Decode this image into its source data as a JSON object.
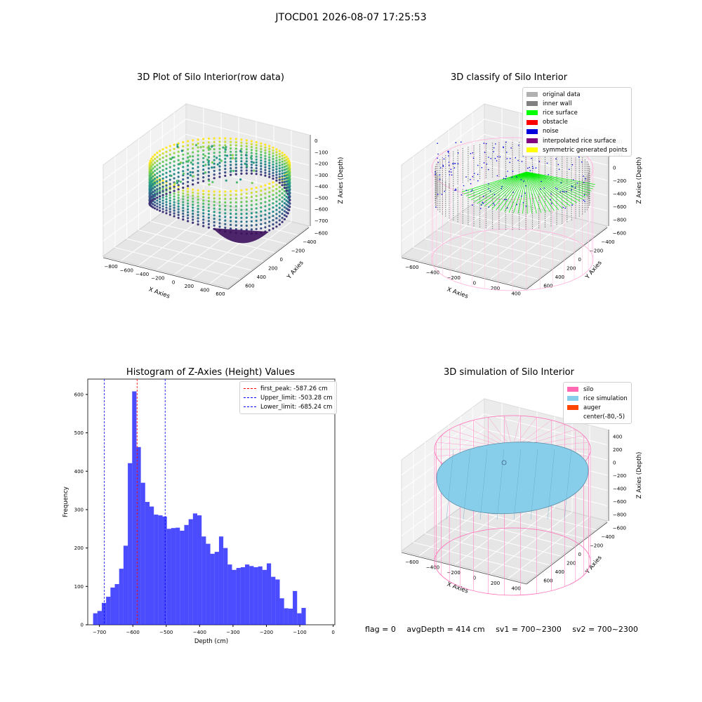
{
  "suptitle": "JTOCD01 2026-08-07 17:25:53",
  "panels": {
    "raw": {
      "title": "3D Plot of Silo Interior(row data)",
      "xlabel": "X Axies",
      "ylabel": "Y Axies",
      "zlabel": "Z Axies (Depth)",
      "xticks": [
        "−800",
        "−600",
        "−400",
        "−200",
        "0",
        "200",
        "400",
        "600"
      ],
      "yticks": [
        "600",
        "400",
        "200",
        "0",
        "−200",
        "−400",
        "−600"
      ],
      "zticks": [
        "0",
        "−100",
        "−200",
        "−300",
        "−400",
        "−500",
        "−600",
        "−700"
      ]
    },
    "classify": {
      "title": "3D classify of Silo Interior",
      "xlabel": "X Axies",
      "ylabel": "Y Axies",
      "zlabel": "Z Axies (Depth)",
      "xticks": [
        "−600",
        "−400",
        "−200",
        "0",
        "200",
        "400"
      ],
      "yticks": [
        "600",
        "400",
        "200",
        "0",
        "−200",
        "−400",
        "−600"
      ],
      "zticks": [
        "400",
        "200",
        "0",
        "−200",
        "−400",
        "−600",
        "−800"
      ],
      "legend": [
        {
          "label": "original data",
          "color": "#b0b0b0"
        },
        {
          "label": "inner wall",
          "color": "#808080"
        },
        {
          "label": "rice surface",
          "color": "#00ff00"
        },
        {
          "label": "obstacle",
          "color": "#ff0000"
        },
        {
          "label": "noise",
          "color": "#0000dd"
        },
        {
          "label": "interpolated rice surface",
          "color": "#800080"
        },
        {
          "label": "symmetric generated points",
          "color": "#ffff00"
        }
      ]
    },
    "simulation": {
      "title": "3D simulation of Silo Interior",
      "xlabel": "X Axies",
      "ylabel": "Y Axies",
      "zlabel": "Z Axies (Depth)",
      "xticks": [
        "−600",
        "−400",
        "−200",
        "0",
        "200",
        "400"
      ],
      "yticks": [
        "600",
        "400",
        "200",
        "0",
        "−200",
        "−400",
        "−600"
      ],
      "zticks": [
        "400",
        "200",
        "0",
        "−200",
        "−400",
        "−600",
        "−800"
      ],
      "legend": [
        {
          "label": "silo",
          "color": "#ff69b4"
        },
        {
          "label": "rice simulation",
          "color": "#87ceeb"
        },
        {
          "label": "auger",
          "color": "#ff4500"
        },
        {
          "label": "center(-80,-5)",
          "color": "none"
        }
      ]
    }
  },
  "chart_data": {
    "type": "bar",
    "title": "Histogram of Z-Axies (Height) Values",
    "xlabel": "Depth (cm)",
    "ylabel": "Frequency",
    "xlim": [
      -735,
      5
    ],
    "ylim": [
      0,
      640
    ],
    "xticks": [
      -700,
      -600,
      -500,
      -400,
      -300,
      -200,
      -100,
      0
    ],
    "yticks": [
      0,
      100,
      200,
      300,
      400,
      500,
      600
    ],
    "bin_start": -719,
    "bin_width": 13,
    "values": [
      30,
      36,
      57,
      73,
      97,
      106,
      146,
      206,
      421,
      608,
      463,
      370,
      320,
      308,
      287,
      285,
      282,
      250,
      252,
      253,
      245,
      260,
      275,
      290,
      285,
      230,
      211,
      185,
      190,
      230,
      200,
      157,
      143,
      148,
      150,
      157,
      153,
      150,
      152,
      143,
      160,
      125,
      118,
      69,
      43,
      42,
      88,
      30,
      44
    ],
    "bar_color": "#0000ff",
    "vlines": [
      {
        "label": "first_peak: -587.26 cm",
        "x": -587.26,
        "color": "#ff0000"
      },
      {
        "label": "Upper_limit: -503.28 cm",
        "x": -503.28,
        "color": "#0000ff"
      },
      {
        "label": "Lower_limit: -685.24 cm",
        "x": -685.24,
        "color": "#0000ff"
      }
    ]
  },
  "status": {
    "flag": "flag = 0",
    "avg_depth": "avgDepth = 414 cm",
    "sv1": "sv1 = 700~2300",
    "sv2": "sv2 = 700~2300"
  }
}
